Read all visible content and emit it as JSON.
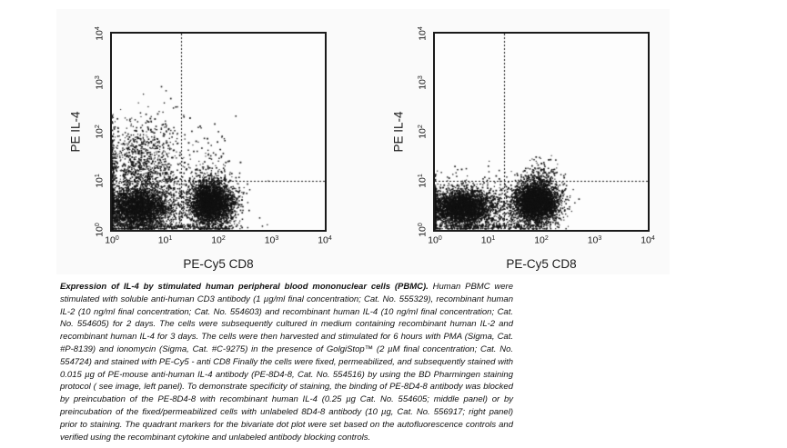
{
  "figure": {
    "background": "#fafafa",
    "plot_background": "#fdfdfd",
    "dot_color": "#111111",
    "axis_color": "#1a1a1a"
  },
  "chart_data": [
    {
      "type": "scatter",
      "panel": "left",
      "subtype": "flow-cytometry-dot-plot",
      "xlabel": "PE-Cy5 CD8",
      "ylabel": "PE IL-4",
      "x_scale": "log",
      "y_scale": "log",
      "xlim": [
        1,
        10000
      ],
      "ylim": [
        1,
        10000
      ],
      "x_tick_exponents": [
        0,
        1,
        2,
        3,
        4
      ],
      "y_tick_exponents": [
        0,
        1,
        2,
        3,
        4
      ],
      "quadrant_marker": {
        "x_value": 20,
        "y_value": 10,
        "style": "dashed"
      },
      "seed": 7,
      "populations": [
        {
          "name": "CD8neg-IL4neg-dense",
          "log_center": [
            0.5,
            0.45
          ],
          "log_sigma": [
            0.3,
            0.22
          ],
          "count": 3200
        },
        {
          "name": "CD8pos-IL4neg-dense",
          "log_center": [
            1.87,
            0.55
          ],
          "log_sigma": [
            0.21,
            0.24
          ],
          "count": 3200
        },
        {
          "name": "CD8neg-IL4pos-plume",
          "log_center": [
            0.55,
            1.35
          ],
          "log_sigma": [
            0.33,
            0.42
          ],
          "count": 850
        },
        {
          "name": "mid-scatter",
          "log_center": [
            1.15,
            0.75
          ],
          "log_sigma": [
            0.6,
            0.45
          ],
          "count": 420
        },
        {
          "name": "upper-sparse",
          "log_center": [
            1.05,
            2.05
          ],
          "log_sigma": [
            0.55,
            0.33
          ],
          "count": 70
        },
        {
          "name": "upper-right-sparse",
          "log_center": [
            1.85,
            1.35
          ],
          "log_sigma": [
            0.3,
            0.35
          ],
          "count": 45
        },
        {
          "name": "baseline-row",
          "log_center": [
            1.05,
            0.07
          ],
          "log_sigma": [
            0.65,
            0.025
          ],
          "count": 220
        },
        {
          "name": "left-edge-column",
          "log_center": [
            0.02,
            0.85
          ],
          "log_sigma": [
            0.02,
            0.6
          ],
          "count": 130
        }
      ]
    },
    {
      "type": "scatter",
      "panel": "right",
      "subtype": "flow-cytometry-dot-plot",
      "xlabel": "PE-Cy5 CD8",
      "ylabel": "PE IL-4",
      "x_scale": "log",
      "y_scale": "log",
      "xlim": [
        1,
        10000
      ],
      "ylim": [
        1,
        10000
      ],
      "x_tick_exponents": [
        0,
        1,
        2,
        3,
        4
      ],
      "y_tick_exponents": [
        0,
        1,
        2,
        3,
        4
      ],
      "quadrant_marker": {
        "x_value": 20,
        "y_value": 10,
        "style": "dashed"
      },
      "seed": 99,
      "populations": [
        {
          "name": "CD8neg-IL4neg-dense",
          "log_center": [
            0.5,
            0.45
          ],
          "log_sigma": [
            0.3,
            0.19
          ],
          "count": 3400
        },
        {
          "name": "CD8pos-IL4neg-dense",
          "log_center": [
            1.9,
            0.55
          ],
          "log_sigma": [
            0.22,
            0.22
          ],
          "count": 3600
        },
        {
          "name": "CD8pos-plume-above-line",
          "log_center": [
            2.0,
            1.12
          ],
          "log_sigma": [
            0.15,
            0.18
          ],
          "count": 140
        },
        {
          "name": "mid-scatter",
          "log_center": [
            1.15,
            0.55
          ],
          "log_sigma": [
            0.55,
            0.28
          ],
          "count": 260
        },
        {
          "name": "upper-left-sparse",
          "log_center": [
            0.6,
            1.1
          ],
          "log_sigma": [
            0.3,
            0.15
          ],
          "count": 10
        },
        {
          "name": "baseline-row",
          "log_center": [
            1.0,
            0.07
          ],
          "log_sigma": [
            0.6,
            0.025
          ],
          "count": 220
        },
        {
          "name": "left-edge-column",
          "log_center": [
            0.02,
            0.45
          ],
          "log_sigma": [
            0.02,
            0.28
          ],
          "count": 80
        }
      ]
    }
  ],
  "caption": {
    "title": "Expression of IL-4 by stimulated human peripheral blood mononuclear cells (PBMC).",
    "body": "Human PBMC were stimulated with soluble anti-human CD3 antibody (1 µg/ml final concentration; Cat. No. 555329), recombinant human IL-2 (10 ng/ml final concentration; Cat. No. 554603) and recombinant human IL-4 (10 ng/ml final concentration; Cat. No. 554605) for 2 days. The cells were subsequently cultured in medium containing recombinant human IL-2 and recombinant human IL-4 for 3 days. The cells were then harvested and stimulated for 6 hours with PMA (Sigma, Cat. #P-8139) and ionomycin (Sigma, Cat. #C-9275) in the presence of GolgiStop™ (2 µM final concentration; Cat. No. 554724) and stained with PE-Cy5 - anti CD8 Finally the cells were fixed, permeabilized, and subsequently stained with 0.015 µg of PE-mouse anti-human IL-4 antibody (PE-8D4-8, Cat. No. 554516) by using the BD Pharmingen staining protocol ( see image, left panel). To demonstrate specificity of staining, the binding of PE-8D4-8 antibody was blocked by preincubation of the PE-8D4-8 with recombinant human IL-4 (0.25 µg Cat. No. 554605; middle panel) or by preincubation of the fixed/permeabilized cells with unlabeled 8D4-8 antibody (10 µg, Cat. No. 556917; right panel) prior to staining. The quadrant markers for the bivariate dot plot were set based on the autofluorescence controls and verified using the recombinant cytokine and unlabeled antibody blocking controls."
  }
}
